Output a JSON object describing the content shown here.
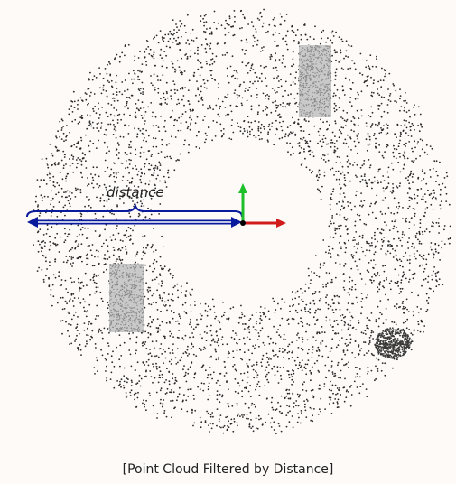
{
  "figure": {
    "distance_label": "distance",
    "caption": "[Point Cloud Filtered by Distance]",
    "colors": {
      "background": "#fdfaf8",
      "points": "#2a2a2a",
      "distance_arrow": "#0a1a9c",
      "x_axis": "#d11a1a",
      "y_axis": "#1fbf2c",
      "origin": "#000000"
    },
    "objects": [
      "rectangular-object-upper-right",
      "rectangular-object-lower-left",
      "point-cluster-lower-right"
    ]
  }
}
